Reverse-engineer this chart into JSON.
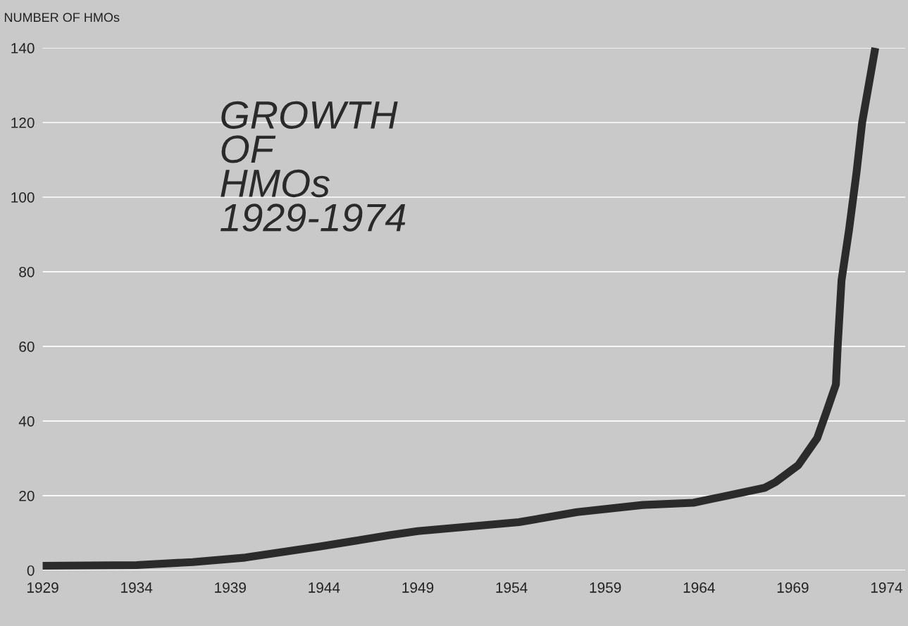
{
  "chart_data": {
    "type": "line",
    "title": "GROWTH\nOF\nHMOs\n1929-1974",
    "ylabel": "NUMBER OF HMOs",
    "x": [
      1929,
      1934,
      1937,
      1939.8,
      1943.8,
      1947.5,
      1949,
      1954.4,
      1957.5,
      1961,
      1963.7,
      1967.5,
      1968.1,
      1969.3,
      1970.3,
      1970.8,
      1971.3,
      1971.4,
      1971.6,
      1972,
      1972.4,
      1972.7,
      1973.4
    ],
    "series": [
      {
        "color": "#2b2b2b",
        "values": [
          1.2,
          1.4,
          2.2,
          3.4,
          6.4,
          9.4,
          10.5,
          12.9,
          15.6,
          17.5,
          18.1,
          22.1,
          23.7,
          28.2,
          35.4,
          42.5,
          49.8,
          60.4,
          77.7,
          91.2,
          106.6,
          120,
          140
        ]
      }
    ],
    "xlim": [
      1929,
      1975
    ],
    "xticks": [
      1929,
      1934,
      1939,
      1944,
      1949,
      1954,
      1959,
      1964,
      1969,
      1974
    ],
    "ylim": [
      0,
      140
    ],
    "yticks": [
      0,
      20,
      40,
      60,
      80,
      100,
      120,
      140
    ],
    "grid": "y",
    "marker": "none",
    "line_style": "solid"
  }
}
